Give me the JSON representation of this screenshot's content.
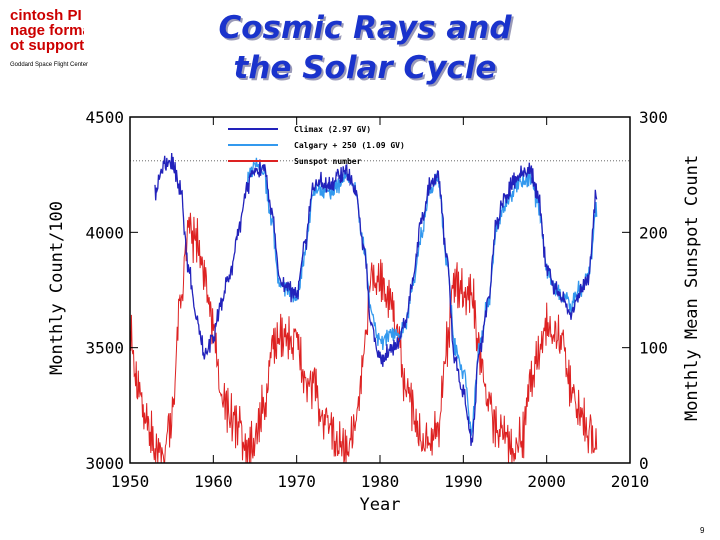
{
  "logo_text": [
    "cintosh PI",
    "nage forma",
    "ot support"
  ],
  "agency": "Goddard Space Flight Center",
  "title_line1": "Cosmic Rays and",
  "title_line2": "the Solar Cycle",
  "slide_number": "9",
  "chart_data": {
    "type": "line",
    "xlabel": "Year",
    "ylabel_left": "Monthly Count/100",
    "ylabel_right": "Monthly Mean Sunspot Count",
    "xlim": [
      1950,
      2010
    ],
    "ylim_left": [
      3000,
      4500
    ],
    "ylim_right": [
      0,
      300
    ],
    "x_ticks": [
      "1950",
      "1960",
      "1970",
      "1980",
      "1990",
      "2000",
      "2010"
    ],
    "y_ticks_left": [
      "3000",
      "3500",
      "4000",
      "4500"
    ],
    "y_ticks_right": [
      "0",
      "100",
      "200",
      "300"
    ],
    "reference_line_y": 4310,
    "legend": [
      {
        "label": "Climax (2.97 GV)",
        "color": "#2222bb"
      },
      {
        "label": "Calgary + 250 (1.09 GV)",
        "color": "#3399ee"
      },
      {
        "label": "Sunspot number",
        "color": "#dd2222"
      }
    ],
    "series": [
      {
        "name": "Climax (2.97 GV)",
        "axis": "left",
        "color": "#2222bb",
        "x": [
          1953.0,
          1954.0,
          1955.0,
          1956.0,
          1957.0,
          1958.0,
          1959.0,
          1960.0,
          1961.0,
          1962.0,
          1963.0,
          1964.0,
          1965.0,
          1966.0,
          1967.0,
          1968.0,
          1969.0,
          1970.0,
          1971.0,
          1972.0,
          1973.0,
          1974.0,
          1975.0,
          1976.0,
          1977.0,
          1978.0,
          1979.0,
          1980.0,
          1981.0,
          1982.0,
          1983.0,
          1984.0,
          1985.0,
          1986.0,
          1987.0,
          1988.0,
          1989.0,
          1990.0,
          1991.0,
          1992.0,
          1993.0,
          1994.0,
          1995.0,
          1996.0,
          1997.0,
          1998.0,
          1999.0,
          2000.0,
          2001.0,
          2002.0,
          2003.0,
          2004.0,
          2005.0,
          2006.0
        ],
        "y": [
          4180,
          4290,
          4300,
          4200,
          3850,
          3620,
          3470,
          3550,
          3700,
          3820,
          4000,
          4200,
          4270,
          4280,
          4100,
          3800,
          3750,
          3720,
          3950,
          4200,
          4220,
          4200,
          4250,
          4260,
          4200,
          3950,
          3600,
          3450,
          3480,
          3500,
          3620,
          3800,
          4050,
          4200,
          4250,
          3900,
          3450,
          3300,
          3100,
          3500,
          3700,
          4050,
          4150,
          4220,
          4250,
          4270,
          4150,
          3850,
          3750,
          3700,
          3650,
          3750,
          3800,
          4180
        ]
      },
      {
        "name": "Calgary + 250 (1.09 GV)",
        "axis": "left",
        "color": "#3399ee",
        "x": [
          1964.0,
          1965.0,
          1966.0,
          1967.0,
          1968.0,
          1969.0,
          1970.0,
          1971.0,
          1972.0,
          1973.0,
          1974.0,
          1975.0,
          1976.0,
          1977.0,
          1978.0,
          1979.0,
          1980.0,
          1981.0,
          1982.0,
          1983.0,
          1984.0,
          1985.0,
          1986.0,
          1987.0,
          1988.0,
          1989.0,
          1990.0,
          1991.0,
          1992.0,
          1993.0,
          1994.0,
          1995.0,
          1996.0,
          1997.0,
          1998.0,
          1999.0,
          2000.0,
          2001.0,
          2002.0,
          2003.0,
          2004.0,
          2005.0,
          2006.0
        ],
        "y": [
          4220,
          4290,
          4260,
          4050,
          3780,
          3740,
          3720,
          3900,
          4170,
          4180,
          4170,
          4210,
          4240,
          4180,
          3950,
          3650,
          3520,
          3560,
          3550,
          3600,
          3780,
          4000,
          4180,
          4220,
          3880,
          3500,
          3400,
          3150,
          3520,
          3700,
          4030,
          4120,
          4180,
          4220,
          4240,
          4120,
          3830,
          3760,
          3720,
          3680,
          3760,
          3810,
          4100
        ]
      },
      {
        "name": "Sunspot number",
        "axis": "right",
        "color": "#dd2222",
        "x": [
          1950.0,
          1951.0,
          1952.0,
          1953.0,
          1954.0,
          1955.0,
          1956.0,
          1957.0,
          1958.0,
          1959.0,
          1960.0,
          1961.0,
          1962.0,
          1963.0,
          1964.0,
          1965.0,
          1966.0,
          1967.0,
          1968.0,
          1969.0,
          1970.0,
          1971.0,
          1972.0,
          1973.0,
          1974.0,
          1975.0,
          1976.0,
          1977.0,
          1978.0,
          1979.0,
          1980.0,
          1981.0,
          1982.0,
          1983.0,
          1984.0,
          1985.0,
          1986.0,
          1987.0,
          1988.0,
          1989.0,
          1990.0,
          1991.0,
          1992.0,
          1993.0,
          1994.0,
          1995.0,
          1996.0,
          1997.0,
          1998.0,
          1999.0,
          2000.0,
          2001.0,
          2002.0,
          2003.0,
          2004.0,
          2005.0,
          2006.0
        ],
        "y": [
          110,
          65,
          35,
          15,
          5,
          40,
          140,
          200,
          190,
          160,
          120,
          55,
          40,
          30,
          12,
          20,
          50,
          95,
          110,
          105,
          105,
          70,
          70,
          40,
          35,
          15,
          12,
          30,
          90,
          160,
          155,
          140,
          115,
          65,
          45,
          18,
          14,
          30,
          100,
          160,
          145,
          145,
          95,
          55,
          30,
          20,
          9,
          20,
          65,
          95,
          120,
          110,
          105,
          65,
          45,
          30,
          15
        ]
      }
    ]
  }
}
